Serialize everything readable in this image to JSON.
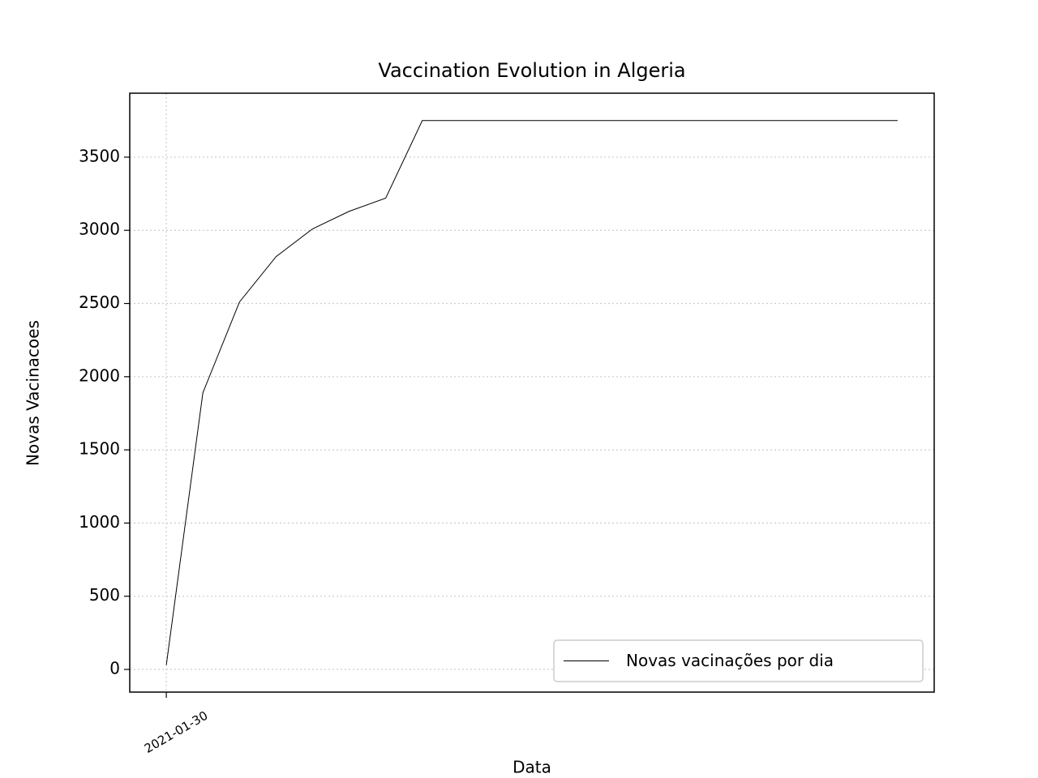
{
  "chart_data": {
    "type": "line",
    "title": "Vaccination Evolution in Algeria",
    "xlabel": "Data",
    "ylabel": "Novas Vacinacoes",
    "categories": [
      "2021-01-30",
      null,
      null,
      null,
      null,
      null,
      null,
      null,
      null,
      null,
      null,
      null,
      null,
      null,
      null,
      null,
      null,
      null,
      null,
      null,
      null
    ],
    "xlim": [
      -1,
      21
    ],
    "series": [
      {
        "name": "Novas vacinações por dia",
        "color": "#000000",
        "values": [
          30,
          1890,
          2510,
          2820,
          3010,
          3130,
          3220,
          3750,
          3750,
          3750,
          3750,
          3750,
          3750,
          3750,
          3750,
          3750,
          3750,
          3750,
          3750,
          3750,
          3750
        ]
      }
    ],
    "ylim": [
      -155,
      3937
    ],
    "yticks": [
      0,
      500,
      1000,
      1500,
      2000,
      2500,
      3000,
      3500
    ],
    "grid": true,
    "legend": "lower right"
  }
}
